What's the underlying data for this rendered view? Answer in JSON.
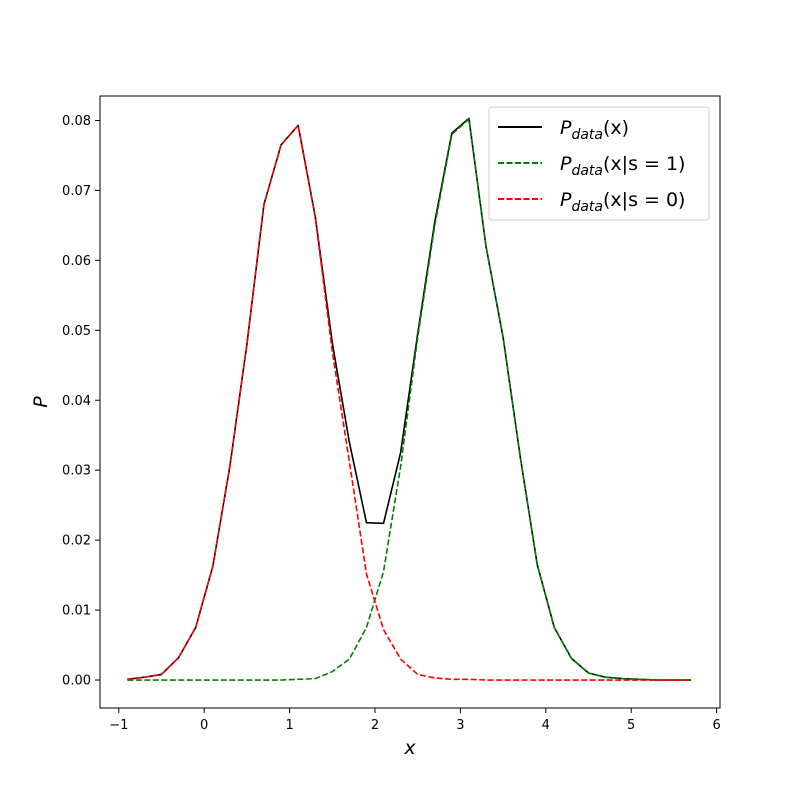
{
  "chart_data": {
    "type": "line",
    "xlabel": "x",
    "ylabel": "P",
    "xlim": [
      -1.22,
      6.04
    ],
    "ylim": [
      -0.004,
      0.0835
    ],
    "xticks": [
      "−1",
      "0",
      "1",
      "2",
      "3",
      "4",
      "5",
      "6"
    ],
    "yticks": [
      "0.00",
      "0.01",
      "0.02",
      "0.03",
      "0.04",
      "0.05",
      "0.06",
      "0.07",
      "0.08"
    ],
    "grid": false,
    "legend_position": "top-right",
    "x": [
      -0.9,
      -0.7,
      -0.5,
      -0.3,
      -0.1,
      0.1,
      0.3,
      0.5,
      0.7,
      0.9,
      1.1,
      1.3,
      1.5,
      1.7,
      1.9,
      2.1,
      2.3,
      2.5,
      2.7,
      2.9,
      3.1,
      3.3,
      3.5,
      3.7,
      3.9,
      4.1,
      4.3,
      4.5,
      4.7,
      4.9,
      5.1,
      5.3,
      5.5,
      5.7
    ],
    "series": [
      {
        "name": "P_data(x)",
        "color": "#000000",
        "dash": "solid",
        "values": [
          0.0001,
          0.0004,
          0.0008,
          0.0032,
          0.0075,
          0.0162,
          0.0305,
          0.048,
          0.068,
          0.0765,
          0.0793,
          0.0663,
          0.0482,
          0.034,
          0.0225,
          0.0224,
          0.0325,
          0.0495,
          0.0655,
          0.0782,
          0.0803,
          0.062,
          0.049,
          0.032,
          0.0165,
          0.0075,
          0.0031,
          0.001,
          0.0004,
          0.0002,
          0.0001,
          0.0,
          0.0,
          0.0
        ]
      },
      {
        "name": "P_data(x|s=1)",
        "color": "#008000",
        "dash": "dashed",
        "values": [
          0.0,
          0.0,
          0.0,
          0.0,
          0.0,
          0.0,
          0.0,
          0.0,
          0.0,
          0.0,
          0.0001,
          0.0002,
          0.0012,
          0.003,
          0.0075,
          0.0155,
          0.0305,
          0.049,
          0.065,
          0.078,
          0.0802,
          0.062,
          0.049,
          0.032,
          0.0165,
          0.0075,
          0.0031,
          0.001,
          0.0004,
          0.0002,
          0.0001,
          0.0,
          0.0,
          0.0
        ]
      },
      {
        "name": "P_data(x|s=0)",
        "color": "#ff0000",
        "dash": "dashed",
        "values": [
          0.0001,
          0.0004,
          0.0008,
          0.0032,
          0.0075,
          0.0162,
          0.0305,
          0.048,
          0.068,
          0.0765,
          0.0793,
          0.0662,
          0.047,
          0.0312,
          0.0152,
          0.0072,
          0.003,
          0.0008,
          0.0003,
          0.0001,
          0.0001,
          0.0,
          0.0,
          0.0,
          0.0,
          0.0,
          0.0,
          0.0,
          0.0,
          0.0,
          0.0,
          0.0,
          0.0,
          0.0
        ]
      }
    ],
    "legend": [
      {
        "base": "P",
        "sub": "data",
        "arg": "(x)"
      },
      {
        "base": "P",
        "sub": "data",
        "arg": "(x|s = 1)"
      },
      {
        "base": "P",
        "sub": "data",
        "arg": "(x|s = 0)"
      }
    ]
  }
}
